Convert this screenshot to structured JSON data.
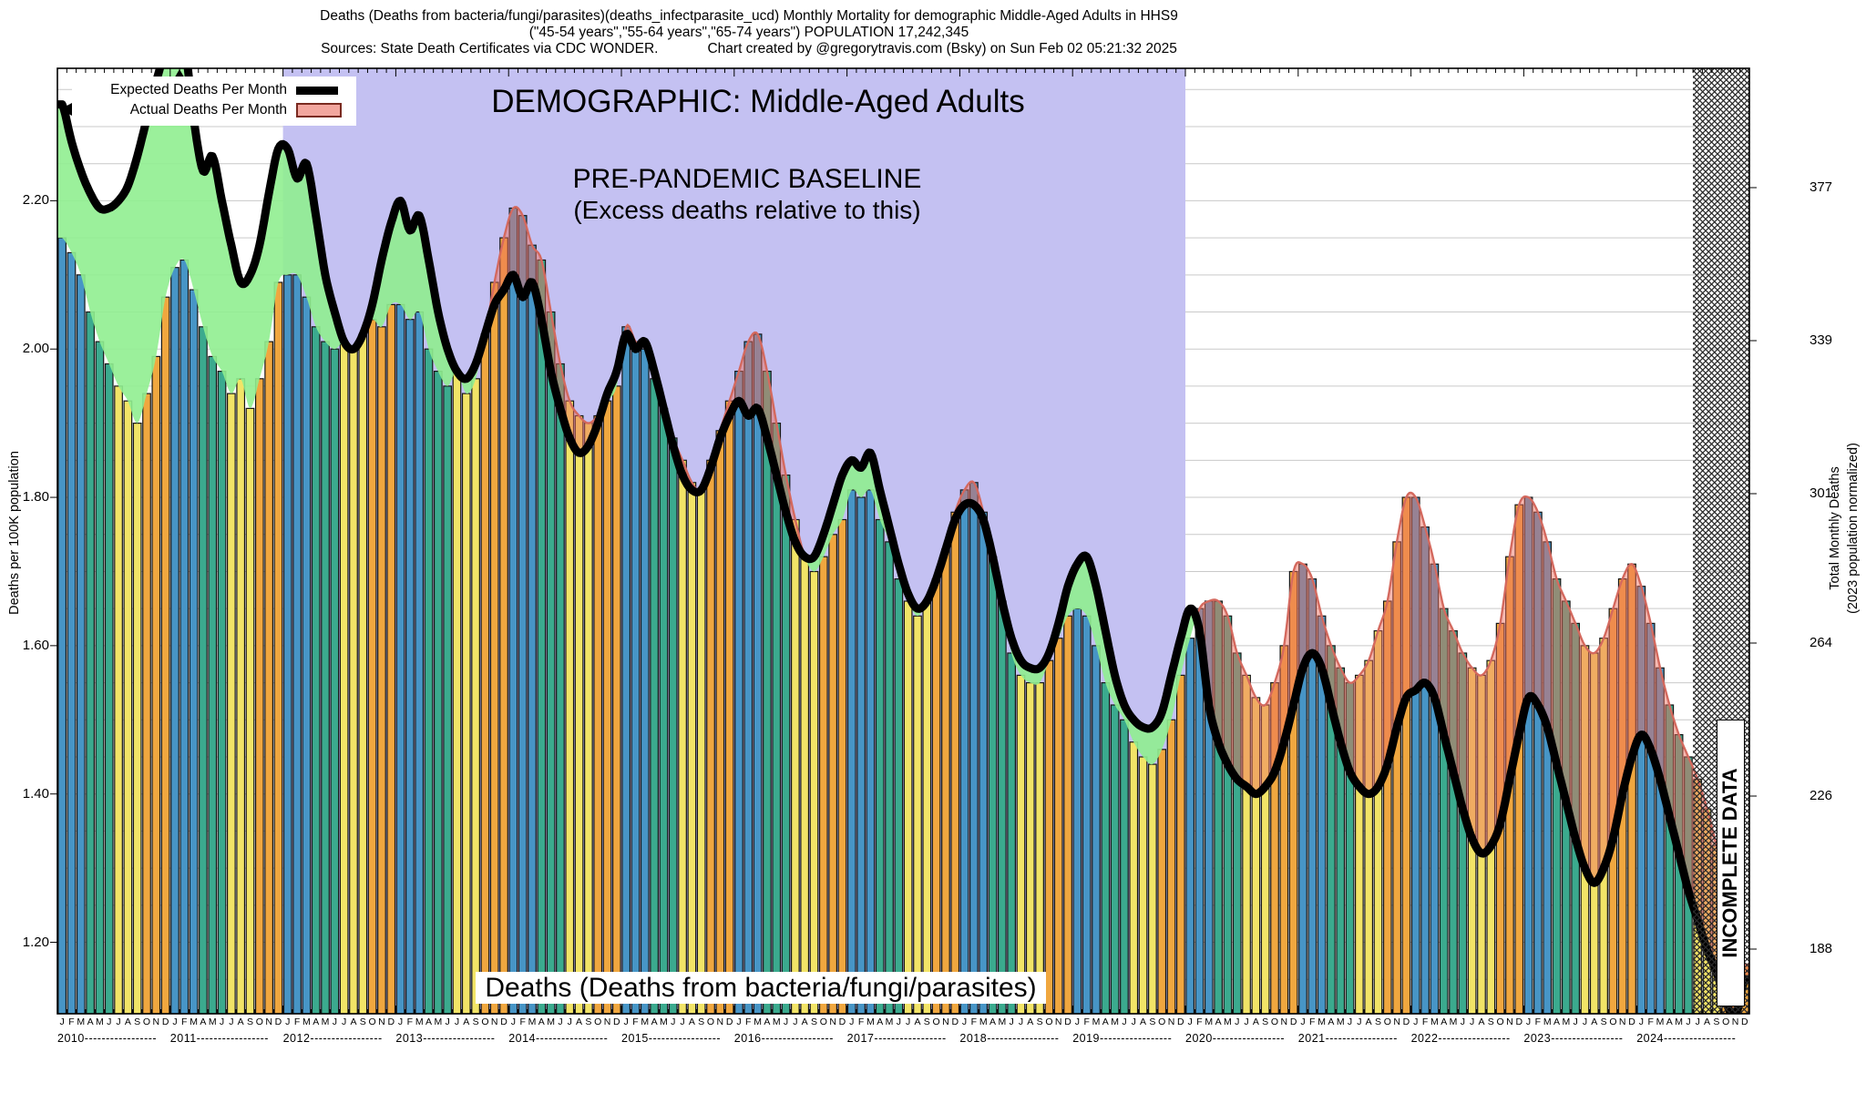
{
  "header": {
    "line1": "Deaths (Deaths from bacteria/fungi/parasites)(deaths_infectparasite_ucd) Monthly Mortality for demographic Middle-Aged Adults in HHS9",
    "line2": "(\"45-54 years\",\"55-64 years\",\"65-74 years\") POPULATION 17,242,345",
    "line3_sources": "Sources: State Death Certificates via CDC WONDER.",
    "line3_credit": "Chart created by @gregorytravis.com (Bsky) on Sun Feb 02 05:21:32 2025"
  },
  "legend": {
    "expected_label": "Expected Deaths Per Month",
    "actual_label": "Actual Deaths Per Month"
  },
  "annotations": {
    "demographic": "DEMOGRAPHIC: Middle-Aged Adults",
    "baseline_line1": "PRE-PANDEMIC BASELINE",
    "baseline_line2": "(Excess deaths relative to this)",
    "series_label": "Deaths (Deaths from bacteria/fungi/parasites)",
    "incomplete": "INCOMPLETE DATA"
  },
  "y_axis": {
    "title": "Deaths per 100K population",
    "ticks": [
      "2.20",
      "2.00",
      "1.80",
      "1.60",
      "1.40",
      "1.20"
    ]
  },
  "y2_axis": {
    "title_line1": "Total Monthly Deaths",
    "title_line2": "(2023 population normalized)",
    "ticks": [
      "377",
      "339",
      "301",
      "264",
      "226",
      "188"
    ]
  },
  "x_axis": {
    "month_letters": "JFMAMJJASOND",
    "years": [
      2010,
      2011,
      2012,
      2013,
      2014,
      2015,
      2016,
      2017,
      2018,
      2019,
      2020,
      2021,
      2022,
      2023,
      2024
    ]
  },
  "colors": {
    "bar_q1_winter": "#4795C6",
    "bar_q2_spring": "#3BAA8E",
    "bar_q3_summer": "#F2E467",
    "bar_q4_fall": "#F0A73F",
    "expected_line": "#000000",
    "deficit_green": "#90EE90",
    "excess_salmon": "rgba(238,110,95,0.48)",
    "excess_edge": "#D4695E",
    "baseline_band": "#C4C1F2",
    "legend_actual_fill": "#F2A69E",
    "legend_actual_border": "#7A2A20",
    "gridline": "#C9C9C9"
  },
  "regions": {
    "baseline_band_from": "2012-01",
    "baseline_band_to": "2020-01",
    "incomplete_from": "2024-07"
  },
  "chart_data": {
    "type": "bar+line",
    "title": "Monthly Mortality, deaths from bacteria/fungi/parasites, Middle-Aged Adults, HHS9",
    "ylabel": "Deaths per 100K population",
    "y2label": "Total Monthly Deaths (2023 population normalized)",
    "ylim": [
      1.1,
      2.38
    ],
    "x_months_per_year": 12,
    "series_names": [
      "Actual Deaths Per Month",
      "Expected Deaths Per Month"
    ],
    "years": [
      {
        "year": 2010,
        "actual": [
          2.15,
          2.13,
          2.1,
          2.05,
          2.01,
          1.98,
          1.95,
          1.93,
          1.9,
          1.94,
          1.99,
          2.07
        ],
        "expected": [
          2.33,
          2.28,
          2.24,
          2.21,
          2.19,
          2.19,
          2.2,
          2.22,
          2.26,
          2.31,
          2.36,
          2.4
        ]
      },
      {
        "year": 2011,
        "actual": [
          2.11,
          2.12,
          2.08,
          2.03,
          1.99,
          1.97,
          1.94,
          1.96,
          1.92,
          1.96,
          2.01,
          2.09
        ],
        "expected": [
          2.4,
          2.41,
          2.31,
          2.24,
          2.26,
          2.2,
          2.14,
          2.09,
          2.1,
          2.14,
          2.21,
          2.27
        ]
      },
      {
        "year": 2012,
        "actual": [
          2.1,
          2.1,
          2.07,
          2.03,
          2.01,
          2.0,
          2.01,
          2.0,
          2.02,
          2.04,
          2.03,
          2.06
        ],
        "expected": [
          2.27,
          2.23,
          2.25,
          2.18,
          2.1,
          2.05,
          2.01,
          2.0,
          2.02,
          2.06,
          2.12,
          2.17
        ]
      },
      {
        "year": 2013,
        "actual": [
          2.06,
          2.04,
          2.05,
          2.0,
          1.97,
          1.95,
          1.97,
          1.94,
          1.96,
          2.02,
          2.09,
          2.15
        ],
        "expected": [
          2.2,
          2.16,
          2.18,
          2.12,
          2.05,
          2.0,
          1.97,
          1.96,
          1.98,
          2.02,
          2.06,
          2.08
        ]
      },
      {
        "year": 2014,
        "actual": [
          2.19,
          2.18,
          2.14,
          2.12,
          2.05,
          1.98,
          1.93,
          1.91,
          1.9,
          1.91,
          1.93,
          1.95
        ],
        "expected": [
          2.1,
          2.07,
          2.09,
          2.04,
          1.97,
          1.92,
          1.88,
          1.86,
          1.87,
          1.9,
          1.94,
          1.97
        ]
      },
      {
        "year": 2015,
        "actual": [
          2.03,
          2.01,
          2.0,
          1.96,
          1.92,
          1.88,
          1.85,
          1.82,
          1.81,
          1.85,
          1.89,
          1.93
        ],
        "expected": [
          2.02,
          2.0,
          2.01,
          1.97,
          1.92,
          1.87,
          1.83,
          1.81,
          1.81,
          1.84,
          1.88,
          1.91
        ]
      },
      {
        "year": 2016,
        "actual": [
          1.97,
          2.01,
          2.02,
          1.97,
          1.9,
          1.83,
          1.77,
          1.72,
          1.7,
          1.72,
          1.75,
          1.77
        ],
        "expected": [
          1.93,
          1.91,
          1.92,
          1.88,
          1.83,
          1.78,
          1.74,
          1.72,
          1.72,
          1.75,
          1.79,
          1.83
        ]
      },
      {
        "year": 2017,
        "actual": [
          1.81,
          1.8,
          1.81,
          1.77,
          1.74,
          1.69,
          1.66,
          1.64,
          1.66,
          1.69,
          1.73,
          1.78
        ],
        "expected": [
          1.85,
          1.84,
          1.86,
          1.81,
          1.76,
          1.71,
          1.67,
          1.65,
          1.66,
          1.69,
          1.73,
          1.77
        ]
      },
      {
        "year": 2018,
        "actual": [
          1.81,
          1.82,
          1.78,
          1.72,
          1.66,
          1.59,
          1.56,
          1.55,
          1.55,
          1.58,
          1.61,
          1.64
        ],
        "expected": [
          1.79,
          1.79,
          1.77,
          1.72,
          1.66,
          1.61,
          1.58,
          1.57,
          1.57,
          1.59,
          1.63,
          1.68
        ]
      },
      {
        "year": 2019,
        "actual": [
          1.65,
          1.64,
          1.6,
          1.55,
          1.52,
          1.5,
          1.47,
          1.45,
          1.44,
          1.46,
          1.5,
          1.56
        ],
        "expected": [
          1.71,
          1.72,
          1.68,
          1.62,
          1.56,
          1.52,
          1.5,
          1.49,
          1.49,
          1.51,
          1.56,
          1.61
        ]
      },
      {
        "year": 2020,
        "actual": [
          1.61,
          1.65,
          1.66,
          1.66,
          1.64,
          1.59,
          1.56,
          1.53,
          1.52,
          1.55,
          1.6,
          1.7
        ],
        "expected": [
          1.65,
          1.62,
          1.52,
          1.47,
          1.44,
          1.42,
          1.41,
          1.4,
          1.41,
          1.43,
          1.47,
          1.52
        ]
      },
      {
        "year": 2021,
        "actual": [
          1.71,
          1.69,
          1.64,
          1.6,
          1.57,
          1.55,
          1.56,
          1.58,
          1.62,
          1.66,
          1.74,
          1.8
        ],
        "expected": [
          1.57,
          1.59,
          1.57,
          1.52,
          1.47,
          1.43,
          1.41,
          1.4,
          1.41,
          1.44,
          1.49,
          1.53
        ]
      },
      {
        "year": 2022,
        "actual": [
          1.8,
          1.76,
          1.71,
          1.65,
          1.62,
          1.59,
          1.57,
          1.56,
          1.58,
          1.63,
          1.72,
          1.79
        ],
        "expected": [
          1.54,
          1.55,
          1.53,
          1.48,
          1.43,
          1.38,
          1.34,
          1.32,
          1.33,
          1.36,
          1.42,
          1.48
        ]
      },
      {
        "year": 2023,
        "actual": [
          1.8,
          1.78,
          1.74,
          1.69,
          1.66,
          1.63,
          1.6,
          1.59,
          1.61,
          1.65,
          1.69,
          1.71
        ],
        "expected": [
          1.53,
          1.52,
          1.49,
          1.44,
          1.39,
          1.34,
          1.3,
          1.28,
          1.3,
          1.34,
          1.4,
          1.45
        ]
      },
      {
        "year": 2024,
        "actual": [
          1.68,
          1.63,
          1.57,
          1.52,
          1.48,
          1.45,
          1.42,
          1.38,
          1.33,
          1.28,
          1.21,
          1.17
        ],
        "expected": [
          1.48,
          1.46,
          1.42,
          1.37,
          1.32,
          1.27,
          1.23,
          1.19,
          1.16,
          1.12,
          1.1,
          1.15
        ]
      }
    ]
  }
}
